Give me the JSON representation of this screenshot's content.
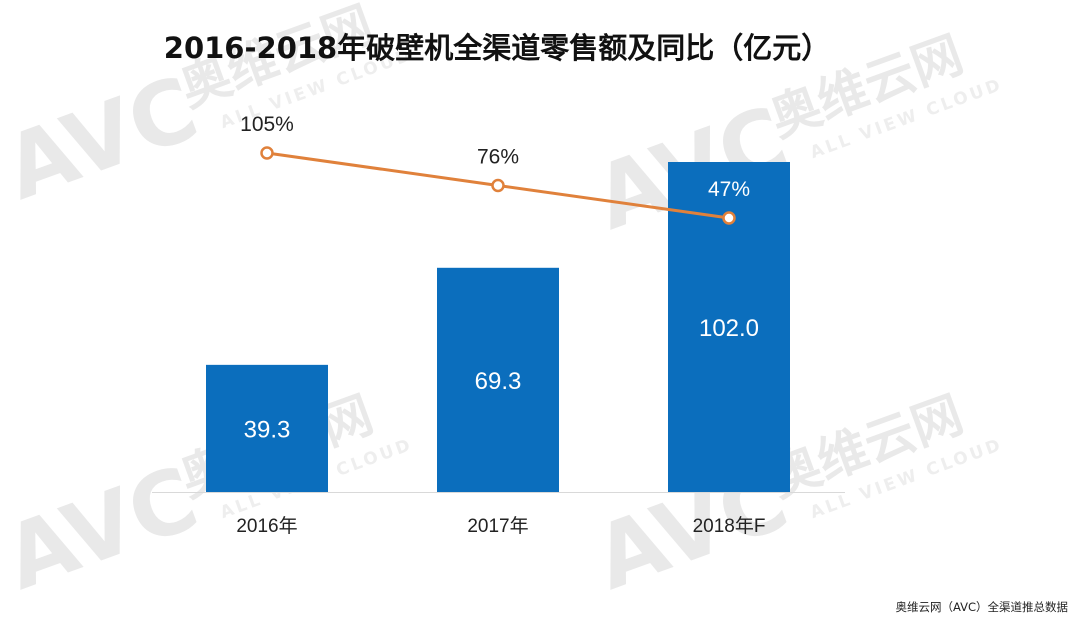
{
  "watermark": {
    "logo": "AVC",
    "brand": "奥维云网",
    "tagline": "ALL VIEW CLOUD"
  },
  "source": "奥维云网（AVC）全渠道推总数据",
  "colors": {
    "bar": "#0b6ebd",
    "line": "#e0813b",
    "bar_label": "#ffffff"
  },
  "chart_data": {
    "type": "bar",
    "title": "2016-2018年破壁机全渠道零售额及同比（亿元）",
    "categories": [
      "2016年",
      "2017年",
      "2018年F"
    ],
    "series": [
      {
        "type": "bar",
        "values": [
          39.3,
          69.3,
          102.0
        ],
        "labels": [
          "39.3",
          "69.3",
          "102.0"
        ]
      },
      {
        "type": "line",
        "values": [
          105,
          76,
          47
        ],
        "labels": [
          "105%",
          "76%",
          "47%"
        ]
      }
    ],
    "xlabel": "",
    "ylabel": "",
    "grid": false,
    "legend": "none"
  }
}
